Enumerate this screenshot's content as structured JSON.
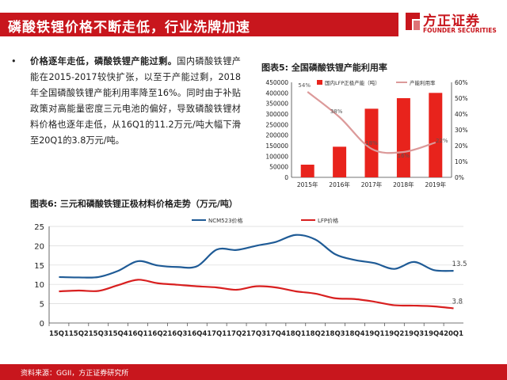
{
  "header": {
    "title": "磷酸铁锂价格不断走低，行业洗牌加速"
  },
  "logo": {
    "name_cn": "方正证券",
    "name_en": "FOUNDER SECURITIES"
  },
  "bullet": {
    "bold": "价格逐年走低，磷酸铁锂产能过剩。",
    "text": "国内磷酸铁锂产能在2015-2017较快扩张，以至于产能过剩，2018年全国磷酸铁锂产能利用率降至16%。同时由于补贴政策对高能量密度三元电池的偏好，导致磷酸铁锂材料价格也逐年走低，从16Q1的11.2万元/吨大幅下滑至20Q1的3.8万元/吨。"
  },
  "figure5_title": "图表5:  全国磷酸铁锂产能利用率",
  "figure6_title": "图表6:  三元和磷酸铁锂正极材料价格走势（万元/吨）",
  "footer": {
    "source": "资料来源：GGII，方正证券研究所"
  },
  "colors": {
    "brand_red": "#c8161d",
    "bar_red": "#e8231c",
    "line_pink": "#dc9a9a",
    "ncm_blue": "#1f5b96",
    "lfp_red": "#d81f1f"
  },
  "chart_data": [
    {
      "type": "bar",
      "categories": [
        "2015年",
        "2016年",
        "2017年",
        "2018年",
        "2019年"
      ],
      "series": [
        {
          "name": "国内LFP正极产能（吨）",
          "type": "bar",
          "axis": "left",
          "values": [
            60000,
            145000,
            325000,
            375000,
            400000
          ]
        },
        {
          "name": "产能利用率",
          "type": "line",
          "axis": "right",
          "values": [
            0.54,
            0.38,
            0.18,
            0.16,
            0.22
          ],
          "labels": [
            "54%",
            "38%",
            "18%",
            "16%",
            "22%"
          ]
        }
      ],
      "ylim_left": [
        0,
        450000
      ],
      "yticks_left": [
        "0",
        "50000",
        "100000",
        "150000",
        "200000",
        "250000",
        "300000",
        "350000",
        "400000",
        "450000"
      ],
      "ylim_right": [
        0,
        0.6
      ],
      "yticks_right": [
        "0%",
        "10%",
        "20%",
        "30%",
        "40%",
        "50%",
        "60%"
      ],
      "legend": "top"
    },
    {
      "type": "line",
      "categories": [
        "15Q1",
        "15Q2",
        "15Q3",
        "15Q4",
        "16Q1",
        "16Q2",
        "16Q3",
        "16Q4",
        "17Q1",
        "17Q2",
        "17Q3",
        "17Q4",
        "18Q1",
        "18Q2",
        "18Q3",
        "18Q4",
        "19Q1",
        "19Q2",
        "19Q3",
        "19Q4",
        "20Q1"
      ],
      "series": [
        {
          "name": "NCM523价格",
          "values": [
            11.9,
            11.8,
            11.9,
            13.5,
            16.0,
            14.9,
            14.5,
            14.7,
            19.0,
            18.9,
            20.0,
            21.0,
            22.8,
            21.6,
            17.8,
            16.3,
            15.5,
            14.0,
            15.8,
            13.7,
            13.5
          ]
        },
        {
          "name": "LFP价格",
          "values": [
            8.2,
            8.4,
            8.3,
            9.8,
            11.2,
            10.3,
            9.9,
            9.5,
            9.2,
            8.6,
            9.5,
            9.2,
            8.2,
            7.6,
            6.4,
            6.2,
            5.5,
            4.6,
            4.5,
            4.3,
            3.8
          ]
        }
      ],
      "end_labels": [
        "13.5",
        "3.8"
      ],
      "ylim": [
        0,
        25
      ],
      "yticks": [
        "0",
        "5",
        "10",
        "15",
        "20",
        "25"
      ],
      "grid": true,
      "legend": "top"
    }
  ]
}
